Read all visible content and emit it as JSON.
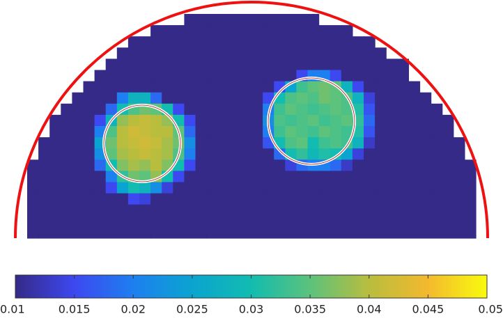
{
  "chart_data": {
    "type": "heatmap",
    "clim": [
      0.01,
      0.05
    ],
    "colorbar_ticks": [
      0.01,
      0.015,
      0.02,
      0.025,
      0.03,
      0.035,
      0.04,
      0.045,
      0.05
    ],
    "colormap": [
      "#352a87",
      "#3d48f0",
      "#1e7ff0",
      "#0aa4d0",
      "#12bcb0",
      "#5cc27c",
      "#b9bd3e",
      "#f3b92e",
      "#f9fb0e"
    ],
    "z": [
      [
        null,
        null,
        null,
        null,
        null,
        null,
        null,
        null,
        null,
        null,
        null,
        null,
        null,
        null,
        0.01,
        0.01,
        0.01,
        0.01,
        0.01,
        0.01,
        0.01,
        0.01,
        0.01,
        0.01,
        0.01,
        0.01,
        null,
        null,
        null,
        null,
        null,
        null,
        null,
        null,
        null,
        null,
        null,
        null,
        null,
        null
      ],
      [
        null,
        null,
        null,
        null,
        null,
        null,
        null,
        null,
        null,
        null,
        null,
        0.01,
        0.01,
        0.01,
        0.01,
        0.01,
        0.01,
        0.01,
        0.01,
        0.01,
        0.01,
        0.01,
        0.01,
        0.01,
        0.01,
        0.01,
        0.01,
        0.01,
        0.01,
        null,
        null,
        null,
        null,
        null,
        null,
        null,
        null,
        null,
        null,
        null
      ],
      [
        null,
        null,
        null,
        null,
        null,
        null,
        null,
        null,
        null,
        0.01,
        0.01,
        0.01,
        0.01,
        0.01,
        0.01,
        0.01,
        0.01,
        0.01,
        0.01,
        0.01,
        0.01,
        0.01,
        0.01,
        0.01,
        0.01,
        0.01,
        0.01,
        0.01,
        0.01,
        0.01,
        0.01,
        null,
        null,
        null,
        null,
        null,
        null,
        null,
        null,
        null
      ],
      [
        null,
        null,
        null,
        null,
        null,
        null,
        null,
        null,
        0.01,
        0.01,
        0.01,
        0.01,
        0.01,
        0.01,
        0.01,
        0.01,
        0.01,
        0.01,
        0.01,
        0.01,
        0.01,
        0.01,
        0.01,
        0.01,
        0.01,
        0.01,
        0.01,
        0.01,
        0.01,
        0.01,
        0.01,
        0.01,
        null,
        null,
        null,
        null,
        null,
        null,
        null,
        null
      ],
      [
        null,
        null,
        null,
        null,
        null,
        null,
        null,
        0.01,
        0.01,
        0.01,
        0.01,
        0.01,
        0.01,
        0.01,
        0.01,
        0.01,
        0.01,
        0.01,
        0.01,
        0.01,
        0.01,
        0.01,
        0.01,
        0.01,
        0.01,
        0.01,
        0.01,
        0.01,
        0.01,
        0.01,
        0.01,
        0.01,
        0.01,
        0.01,
        null,
        null,
        null,
        null,
        null,
        null,
        null
      ],
      [
        null,
        null,
        null,
        null,
        null,
        null,
        0.01,
        0.01,
        0.01,
        0.01,
        0.01,
        0.01,
        0.01,
        0.01,
        0.01,
        0.01,
        0.01,
        0.01,
        0.01,
        0.01,
        0.01,
        0.01,
        0.01,
        0.01,
        0.015,
        0.02,
        0.02,
        0.015,
        0.01,
        0.01,
        0.01,
        0.01,
        0.01,
        0.01,
        null,
        null,
        null,
        null,
        null,
        null
      ],
      [
        null,
        null,
        null,
        null,
        null,
        0.01,
        0.01,
        0.01,
        0.01,
        0.01,
        0.01,
        0.01,
        0.01,
        0.01,
        0.01,
        0.01,
        0.01,
        0.01,
        0.01,
        0.01,
        0.01,
        0.01,
        0.015,
        0.025,
        0.033,
        0.035,
        0.036,
        0.035,
        0.028,
        0.015,
        0.01,
        0.01,
        0.01,
        0.01,
        0.01,
        null,
        null,
        null,
        null,
        null
      ],
      [
        null,
        null,
        null,
        null,
        0.01,
        0.01,
        0.01,
        0.01,
        0.02,
        0.028,
        0.028,
        0.018,
        0.01,
        0.01,
        0.01,
        0.01,
        0.01,
        0.01,
        0.01,
        0.01,
        0.01,
        0.015,
        0.03,
        0.034,
        0.035,
        0.034,
        0.036,
        0.035,
        0.034,
        0.028,
        0.014,
        0.01,
        0.01,
        0.01,
        0.01,
        0.01,
        null,
        null,
        null,
        null
      ],
      [
        null,
        null,
        null,
        0.01,
        0.01,
        0.01,
        0.01,
        0.018,
        0.03,
        0.034,
        0.036,
        0.035,
        0.03,
        0.015,
        0.01,
        0.01,
        0.01,
        0.01,
        0.01,
        0.01,
        0.01,
        0.02,
        0.033,
        0.035,
        0.034,
        0.033,
        0.034,
        0.035,
        0.034,
        0.031,
        0.016,
        0.01,
        0.01,
        0.01,
        0.01,
        0.01,
        0.01,
        null,
        null,
        null
      ],
      [
        null,
        null,
        0.01,
        0.01,
        0.01,
        0.01,
        0.015,
        0.028,
        0.038,
        0.04,
        0.041,
        0.04,
        0.038,
        0.03,
        0.015,
        0.01,
        0.01,
        0.01,
        0.01,
        0.01,
        0.01,
        0.022,
        0.034,
        0.033,
        0.034,
        0.035,
        0.033,
        0.034,
        0.035,
        0.032,
        0.018,
        0.01,
        0.01,
        0.01,
        0.01,
        0.01,
        0.01,
        0.01,
        null,
        null
      ],
      [
        null,
        null,
        0.01,
        0.01,
        0.01,
        0.01,
        0.02,
        0.034,
        0.04,
        0.042,
        0.041,
        0.04,
        0.04,
        0.035,
        0.018,
        0.01,
        0.01,
        0.01,
        0.01,
        0.01,
        0.01,
        0.02,
        0.033,
        0.035,
        0.034,
        0.033,
        0.035,
        0.034,
        0.033,
        0.031,
        0.016,
        0.01,
        0.01,
        0.01,
        0.01,
        0.01,
        0.01,
        0.01,
        null,
        null
      ],
      [
        null,
        0.01,
        0.01,
        0.01,
        0.01,
        0.01,
        0.025,
        0.036,
        0.04,
        0.041,
        0.042,
        0.041,
        0.039,
        0.036,
        0.022,
        0.01,
        0.01,
        0.01,
        0.01,
        0.01,
        0.01,
        0.016,
        0.03,
        0.034,
        0.035,
        0.03,
        0.033,
        0.034,
        0.033,
        0.028,
        0.013,
        0.01,
        0.01,
        0.01,
        0.01,
        0.01,
        0.01,
        0.01,
        0.01,
        null
      ],
      [
        null,
        0.01,
        0.01,
        0.01,
        0.01,
        0.01,
        0.022,
        0.035,
        0.039,
        0.04,
        0.041,
        0.04,
        0.039,
        0.034,
        0.02,
        0.01,
        0.01,
        0.01,
        0.01,
        0.01,
        0.01,
        0.01,
        0.018,
        0.03,
        0.032,
        0.029,
        0.031,
        0.03,
        0.025,
        0.014,
        0.01,
        0.01,
        0.01,
        0.01,
        0.01,
        0.01,
        0.01,
        0.01,
        0.01,
        null
      ],
      [
        0.01,
        0.01,
        0.01,
        0.01,
        0.01,
        0.01,
        0.018,
        0.03,
        0.037,
        0.039,
        0.038,
        0.04,
        0.037,
        0.03,
        0.015,
        0.01,
        0.01,
        0.01,
        0.01,
        0.01,
        0.01,
        0.01,
        0.01,
        0.014,
        0.018,
        0.02,
        0.02,
        0.018,
        0.013,
        0.01,
        0.01,
        0.01,
        0.01,
        0.01,
        0.01,
        0.01,
        0.01,
        0.01,
        0.01,
        0.01
      ],
      [
        0.01,
        0.01,
        0.01,
        0.01,
        0.01,
        0.01,
        0.01,
        0.02,
        0.032,
        0.036,
        0.035,
        0.038,
        0.03,
        0.015,
        0.01,
        0.01,
        0.01,
        0.01,
        0.01,
        0.01,
        0.01,
        0.01,
        0.01,
        0.01,
        0.01,
        0.01,
        0.01,
        0.01,
        0.01,
        0.01,
        0.01,
        0.01,
        0.01,
        0.01,
        0.01,
        0.01,
        0.01,
        0.01,
        0.01,
        0.01
      ],
      [
        0.01,
        0.01,
        0.01,
        0.01,
        0.01,
        0.01,
        0.01,
        0.015,
        0.025,
        0.03,
        0.028,
        0.022,
        0.014,
        0.01,
        0.01,
        0.01,
        0.01,
        0.01,
        0.01,
        0.01,
        0.01,
        0.01,
        0.01,
        0.01,
        0.01,
        0.01,
        0.01,
        0.01,
        0.01,
        0.01,
        0.01,
        0.01,
        0.01,
        0.01,
        0.01,
        0.01,
        0.01,
        0.01,
        0.01,
        0.01
      ],
      [
        0.01,
        0.01,
        0.01,
        0.01,
        0.01,
        0.01,
        0.01,
        0.01,
        0.01,
        0.015,
        0.014,
        0.01,
        0.01,
        0.01,
        0.01,
        0.01,
        0.01,
        0.01,
        0.01,
        0.01,
        0.01,
        0.01,
        0.01,
        0.01,
        0.01,
        0.01,
        0.01,
        0.01,
        0.01,
        0.01,
        0.01,
        0.01,
        0.01,
        0.01,
        0.01,
        0.01,
        0.01,
        0.01,
        0.01,
        0.01
      ],
      [
        0.01,
        0.01,
        0.01,
        0.01,
        0.01,
        0.01,
        0.01,
        0.01,
        0.01,
        0.01,
        0.01,
        0.01,
        0.01,
        0.01,
        0.01,
        0.01,
        0.01,
        0.01,
        0.01,
        0.01,
        0.01,
        0.01,
        0.01,
        0.01,
        0.01,
        0.01,
        0.01,
        0.01,
        0.01,
        0.01,
        0.01,
        0.01,
        0.01,
        0.01,
        0.01,
        0.01,
        0.01,
        0.01,
        0.01,
        0.01
      ],
      [
        0.01,
        0.01,
        0.01,
        0.01,
        0.01,
        0.01,
        0.01,
        0.01,
        0.01,
        0.01,
        0.01,
        0.01,
        0.01,
        0.01,
        0.01,
        0.01,
        0.01,
        0.01,
        0.01,
        0.01,
        0.01,
        0.01,
        0.01,
        0.01,
        0.01,
        0.01,
        0.01,
        0.01,
        0.01,
        0.01,
        0.01,
        0.01,
        0.01,
        0.01,
        0.01,
        0.01,
        0.01,
        0.01,
        0.01,
        0.01
      ],
      [
        0.01,
        0.01,
        0.01,
        0.01,
        0.01,
        0.01,
        0.01,
        0.01,
        0.01,
        0.01,
        0.01,
        0.01,
        0.01,
        0.01,
        0.01,
        0.01,
        0.01,
        0.01,
        0.01,
        0.01,
        0.01,
        0.01,
        0.01,
        0.01,
        0.01,
        0.01,
        0.01,
        0.01,
        0.01,
        0.01,
        0.01,
        0.01,
        0.01,
        0.01,
        0.01,
        0.01,
        0.01,
        0.01,
        0.01,
        0.01
      ]
    ]
  }
}
